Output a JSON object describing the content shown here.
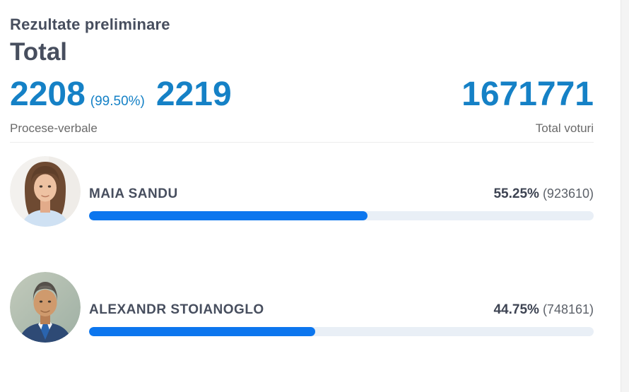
{
  "header": {
    "subtitle": "Rezultate preliminare",
    "title": "Total"
  },
  "summary": {
    "processed_count": "2208",
    "processed_percent": "(99.50%)",
    "total_count": "2219",
    "processed_label": "Procese-verbale",
    "total_votes": "1671771",
    "total_votes_label": "Total voturi"
  },
  "candidates": [
    {
      "name": "MAIA SANDU",
      "percent": "55.25%",
      "votes": "(923610)",
      "bar_percent": 55.25,
      "avatar": "maia-sandu-photo"
    },
    {
      "name": "ALEXANDR STOIANOGLO",
      "percent": "44.75%",
      "votes": "(748161)",
      "bar_percent": 44.75,
      "avatar": "alexandr-stoianoglo-photo"
    }
  ],
  "colors": {
    "accent_blue": "#1581c6",
    "bar_fill": "#0c76ee",
    "bar_track": "#e9eff6",
    "heading": "#474e5e",
    "muted": "#6a6a6a"
  }
}
